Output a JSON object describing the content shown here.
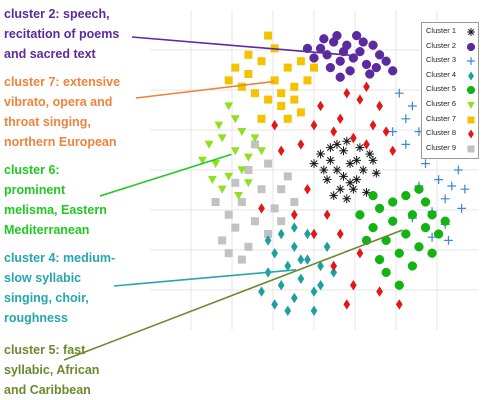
{
  "chart_data": {
    "type": "scatter",
    "title": "",
    "xlabel": "",
    "ylabel": "",
    "xlim": [
      0,
      100
    ],
    "ylim": [
      0,
      100
    ],
    "grid": true,
    "legend_position": "top-right",
    "series": [
      {
        "name": "Cluster 1",
        "color": "#1a1a1a",
        "marker": "asterisk",
        "points": [
          [
            55,
            53
          ],
          [
            57,
            50
          ],
          [
            59,
            56
          ],
          [
            61,
            52
          ],
          [
            63,
            47
          ],
          [
            58,
            44
          ],
          [
            65,
            50
          ],
          [
            54,
            47
          ],
          [
            60,
            59
          ],
          [
            67,
            55
          ],
          [
            52,
            55
          ],
          [
            56,
            42
          ],
          [
            62,
            44
          ],
          [
            64,
            57
          ],
          [
            53,
            50
          ],
          [
            69,
            49
          ],
          [
            59,
            48
          ],
          [
            66,
            43
          ],
          [
            57,
            58
          ],
          [
            61,
            46
          ],
          [
            55,
            57
          ],
          [
            63,
            53
          ],
          [
            50,
            52
          ],
          [
            68,
            53
          ],
          [
            60,
            41
          ]
        ]
      },
      {
        "name": "Cluster 2",
        "color": "#5b2a9e",
        "marker": "circle",
        "points": [
          [
            52,
            88
          ],
          [
            56,
            90
          ],
          [
            60,
            89
          ],
          [
            64,
            87
          ],
          [
            68,
            89
          ],
          [
            54,
            86
          ],
          [
            58,
            84
          ],
          [
            62,
            85
          ],
          [
            66,
            83
          ],
          [
            70,
            86
          ],
          [
            57,
            92
          ],
          [
            63,
            92
          ],
          [
            50,
            85
          ],
          [
            55,
            82
          ],
          [
            61,
            81
          ],
          [
            67,
            80
          ],
          [
            72,
            84
          ],
          [
            59,
            87
          ],
          [
            65,
            90
          ],
          [
            53,
            91
          ],
          [
            69,
            82
          ],
          [
            48,
            88
          ],
          [
            74,
            81
          ],
          [
            58,
            79
          ]
        ]
      },
      {
        "name": "Cluster 3",
        "color": "#3a86d9",
        "marker": "plus",
        "points": [
          [
            78,
            66
          ],
          [
            82,
            62
          ],
          [
            86,
            58
          ],
          [
            84,
            52
          ],
          [
            88,
            47
          ],
          [
            90,
            41
          ],
          [
            86,
            37
          ],
          [
            92,
            45
          ],
          [
            80,
            70
          ],
          [
            76,
            74
          ],
          [
            88,
            55
          ],
          [
            94,
            50
          ],
          [
            82,
            45
          ],
          [
            90,
            33
          ],
          [
            95,
            38
          ],
          [
            84,
            68
          ],
          [
            78,
            58
          ],
          [
            92,
            60
          ],
          [
            86,
            29
          ],
          [
            80,
            35
          ],
          [
            91,
            28
          ],
          [
            74,
            62
          ],
          [
            96,
            44
          ],
          [
            88,
            62
          ]
        ]
      },
      {
        "name": "Cluster 4",
        "color": "#1f9e9e",
        "marker": "diamond",
        "points": [
          [
            40,
            30
          ],
          [
            44,
            26
          ],
          [
            48,
            22
          ],
          [
            42,
            20
          ],
          [
            46,
            16
          ],
          [
            50,
            12
          ],
          [
            38,
            24
          ],
          [
            36,
            18
          ],
          [
            44,
            10
          ],
          [
            52,
            20
          ],
          [
            40,
            14
          ],
          [
            48,
            30
          ],
          [
            54,
            26
          ],
          [
            34,
            12
          ],
          [
            42,
            6
          ],
          [
            50,
            6
          ],
          [
            46,
            22
          ],
          [
            56,
            18
          ],
          [
            38,
            8
          ],
          [
            52,
            14
          ],
          [
            44,
            32
          ],
          [
            36,
            28
          ]
        ]
      },
      {
        "name": "Cluster 5",
        "color": "#12b312",
        "marker": "circle",
        "points": [
          [
            70,
            38
          ],
          [
            74,
            34
          ],
          [
            78,
            30
          ],
          [
            72,
            28
          ],
          [
            76,
            24
          ],
          [
            80,
            36
          ],
          [
            84,
            32
          ],
          [
            68,
            32
          ],
          [
            82,
            26
          ],
          [
            86,
            36
          ],
          [
            74,
            40
          ],
          [
            78,
            42
          ],
          [
            70,
            22
          ],
          [
            88,
            30
          ],
          [
            66,
            28
          ],
          [
            80,
            20
          ],
          [
            84,
            40
          ],
          [
            72,
            18
          ],
          [
            76,
            14
          ],
          [
            86,
            24
          ],
          [
            64,
            36
          ],
          [
            90,
            34
          ],
          [
            68,
            42
          ],
          [
            82,
            44
          ]
        ]
      },
      {
        "name": "Cluster 6",
        "color": "#8fe021",
        "marker": "triangle-down",
        "points": [
          [
            22,
            60
          ],
          [
            26,
            56
          ],
          [
            20,
            52
          ],
          [
            24,
            48
          ],
          [
            28,
            62
          ],
          [
            18,
            58
          ],
          [
            30,
            54
          ],
          [
            22,
            44
          ],
          [
            26,
            66
          ],
          [
            32,
            60
          ],
          [
            19,
            47
          ],
          [
            28,
            50
          ],
          [
            24,
            70
          ],
          [
            21,
            64
          ],
          [
            30,
            46
          ],
          [
            34,
            56
          ],
          [
            27,
            42
          ],
          [
            16,
            53
          ]
        ]
      },
      {
        "name": "Cluster 7",
        "color": "#f5c200",
        "marker": "square",
        "points": [
          [
            30,
            80
          ],
          [
            34,
            84
          ],
          [
            38,
            78
          ],
          [
            42,
            82
          ],
          [
            36,
            72
          ],
          [
            32,
            74
          ],
          [
            40,
            70
          ],
          [
            44,
            76
          ],
          [
            28,
            76
          ],
          [
            46,
            84
          ],
          [
            38,
            88
          ],
          [
            42,
            66
          ],
          [
            34,
            66
          ],
          [
            48,
            78
          ],
          [
            30,
            86
          ],
          [
            26,
            82
          ],
          [
            44,
            72
          ],
          [
            36,
            92
          ],
          [
            50,
            82
          ],
          [
            40,
            74
          ],
          [
            24,
            78
          ],
          [
            46,
            68
          ]
        ]
      },
      {
        "name": "Cluster 8",
        "color": "#e01818",
        "marker": "diamond",
        "points": [
          [
            52,
            70
          ],
          [
            58,
            66
          ],
          [
            64,
            72
          ],
          [
            68,
            64
          ],
          [
            56,
            62
          ],
          [
            62,
            60
          ],
          [
            70,
            70
          ],
          [
            50,
            64
          ],
          [
            46,
            58
          ],
          [
            66,
            76
          ],
          [
            72,
            62
          ],
          [
            60,
            74
          ],
          [
            48,
            44
          ],
          [
            44,
            36
          ],
          [
            54,
            36
          ],
          [
            58,
            30
          ],
          [
            64,
            24
          ],
          [
            70,
            12
          ],
          [
            62,
            14
          ],
          [
            50,
            30
          ],
          [
            56,
            20
          ],
          [
            40,
            56
          ],
          [
            74,
            56
          ],
          [
            66,
            58
          ],
          [
            34,
            38
          ],
          [
            60,
            8
          ],
          [
            76,
            8
          ],
          [
            38,
            64
          ]
        ]
      },
      {
        "name": "Cluster 9",
        "color": "#c2c2c2",
        "marker": "square",
        "points": [
          [
            28,
            40
          ],
          [
            32,
            34
          ],
          [
            36,
            30
          ],
          [
            30,
            26
          ],
          [
            26,
            32
          ],
          [
            34,
            44
          ],
          [
            38,
            38
          ],
          [
            24,
            36
          ],
          [
            40,
            44
          ],
          [
            30,
            50
          ],
          [
            36,
            52
          ],
          [
            42,
            48
          ],
          [
            22,
            28
          ],
          [
            28,
            22
          ],
          [
            20,
            40
          ],
          [
            44,
            40
          ],
          [
            32,
            58
          ],
          [
            26,
            46
          ],
          [
            40,
            34
          ],
          [
            24,
            24
          ],
          [
            86,
            80
          ],
          [
            90,
            76
          ],
          [
            84,
            74
          ],
          [
            88,
            70
          ]
        ]
      }
    ]
  },
  "annotations": [
    {
      "text": "cluster 2: speech,\nrecitation of poems\nand sacred text",
      "color": "#5b2a9e"
    },
    {
      "text": "cluster 7: extensive\nvibrato, opera and\nthroat singing,\nnorthern European",
      "color": "#f0823c"
    },
    {
      "text": "cluster 6:\nprominent\nmelisma, Eastern\nMediterranean",
      "color": "#1fc91f"
    },
    {
      "text": "cluster 4: medium-\nslow syllabic\nsinging, choir,\nroughness",
      "color": "#26a6b0"
    },
    {
      "text": "cluster 5: fast\nsyllabic, African\nand Caribbean",
      "color": "#6b8a2e"
    }
  ]
}
